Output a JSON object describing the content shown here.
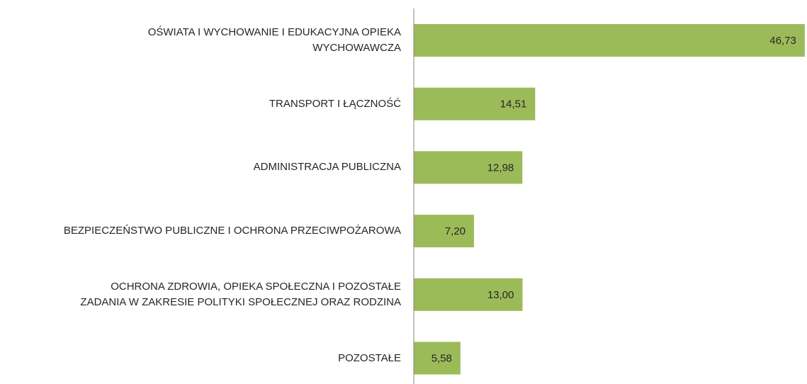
{
  "chart_data": {
    "type": "barh",
    "categories": [
      "OŚWIATA I WYCHOWANIE I EDUKACYJNA OPIEKA\nWYCHOWAWCZA",
      "TRANSPORT I ŁĄCZNOŚĆ",
      "ADMINISTRACJA PUBLICZNA",
      "BEZPIECZEŃSTWO PUBLICZNE I OCHRONA PRZECIWPOŻAROWA",
      "OCHRONA ZDROWIA, OPIEKA SPOŁECZNA I POZOSTAŁE\nZADANIA W ZAKRESIE POLITYKI SPOŁECZNEJ ORAZ RODZINA",
      "POZOSTAŁE"
    ],
    "values": [
      46.73,
      14.51,
      12.98,
      7.2,
      13.0,
      5.58
    ],
    "value_labels": [
      "46,73",
      "14,51",
      "12,98",
      "7,20",
      "13,00",
      "5,58"
    ],
    "color": "#9bbb59",
    "xlim": [
      0,
      47
    ]
  }
}
